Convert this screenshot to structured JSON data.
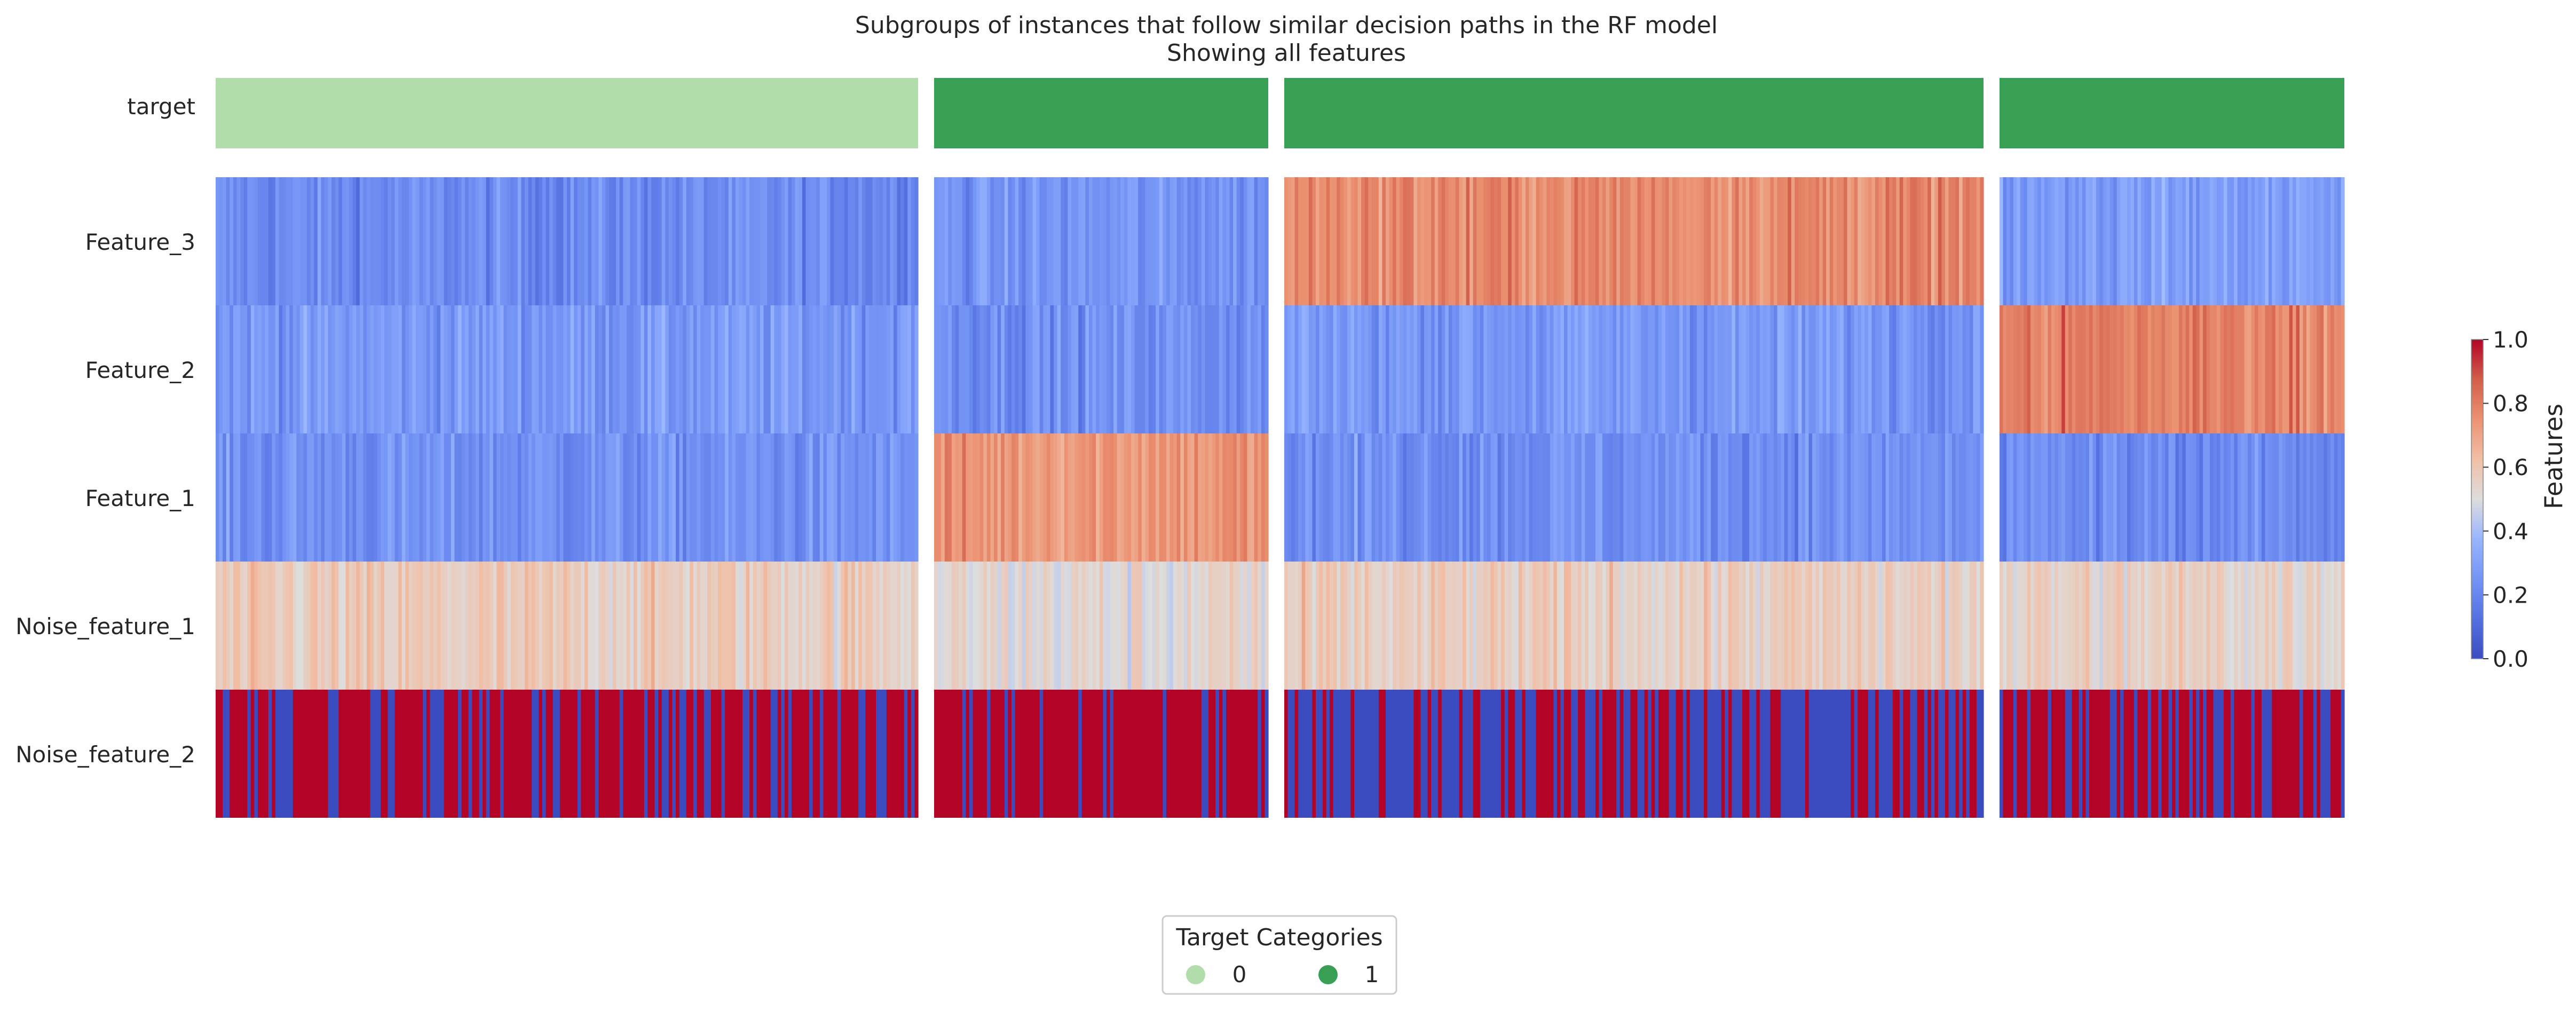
{
  "chart_data": {
    "type": "heatmap",
    "title": "Subgroups of instances that follow similar decision paths in the RF model",
    "subtitle": "Showing all features",
    "row_labels": [
      "target",
      "Feature_3",
      "Feature_2",
      "Feature_1",
      "Noise_feature_1",
      "Noise_feature_2"
    ],
    "groups": [
      {
        "target": 0,
        "n_instances": 200,
        "feature_mean": {
          "Feature_3": 0.22,
          "Feature_2": 0.27,
          "Feature_1": 0.24,
          "Noise_feature_1": 0.57,
          "Noise_feature_2": 0.68
        }
      },
      {
        "target": 1,
        "n_instances": 95,
        "feature_mean": {
          "Feature_3": 0.25,
          "Feature_2": 0.24,
          "Feature_1": 0.74,
          "Noise_feature_1": 0.52,
          "Noise_feature_2": 0.75
        }
      },
      {
        "target": 1,
        "n_instances": 200,
        "feature_mean": {
          "Feature_3": 0.77,
          "Feature_2": 0.27,
          "Feature_1": 0.24,
          "Noise_feature_1": 0.56,
          "Noise_feature_2": 0.35
        }
      },
      {
        "target": 1,
        "n_instances": 100,
        "feature_mean": {
          "Feature_3": 0.29,
          "Feature_2": 0.79,
          "Feature_1": 0.22,
          "Noise_feature_1": 0.55,
          "Noise_feature_2": 0.6
        }
      }
    ],
    "noise_feature_2_binary": true,
    "colormap": "coolwarm",
    "colorbar": {
      "label": "Features",
      "ticks": [
        "0.0",
        "0.2",
        "0.4",
        "0.6",
        "0.8",
        "1.0"
      ],
      "range": [
        0.0,
        1.0
      ]
    },
    "legend": {
      "title": "Target Categories",
      "placement": "bottom-center",
      "entries": [
        {
          "label": "0",
          "color": "#b0ddaa"
        },
        {
          "label": "1",
          "color": "#38a055"
        }
      ]
    }
  }
}
